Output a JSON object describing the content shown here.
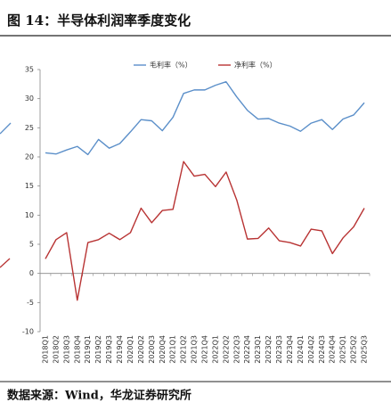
{
  "chart_data": {
    "type": "line",
    "title": "图 14：半导体利润率季度变化",
    "source": "数据来源：Wind，华龙证券研究所",
    "categories": [
      "2018Q1",
      "2018Q2",
      "2018Q3",
      "2018Q4",
      "2019Q1",
      "2019Q2",
      "2019Q3",
      "2019Q4",
      "2020Q1",
      "2020Q2",
      "2020Q3",
      "2020Q4",
      "2021Q1",
      "2021Q2",
      "2021Q3",
      "2021Q4",
      "2022Q1",
      "2022Q2",
      "2022Q3",
      "2022Q4",
      "2023Q1",
      "2023Q2",
      "2023Q3",
      "2023Q4",
      "2024Q1",
      "2024Q2",
      "2024Q3",
      "2024Q4",
      "2025Q1",
      "2025Q2",
      "2025Q3"
    ],
    "series": [
      {
        "name": "毛利率（%）",
        "color": "#5b8fc9",
        "values": [
          20.7,
          20.5,
          21.2,
          21.8,
          20.4,
          23.0,
          21.5,
          22.3,
          24.3,
          26.4,
          26.2,
          24.5,
          26.8,
          30.9,
          31.5,
          31.5,
          32.3,
          32.9,
          30.3,
          28.0,
          26.5,
          26.6,
          25.8,
          25.3,
          24.4,
          25.8,
          26.4,
          24.7,
          26.5,
          27.2,
          29.3
        ]
      },
      {
        "name": "净利率（%）",
        "color": "#b83333",
        "values": [
          2.5,
          5.8,
          7.0,
          -4.6,
          5.3,
          5.8,
          6.9,
          5.8,
          7.0,
          11.2,
          8.7,
          10.8,
          11.0,
          19.2,
          16.7,
          17.0,
          14.9,
          17.4,
          12.6,
          5.9,
          6.0,
          7.8,
          5.6,
          5.3,
          4.7,
          7.6,
          7.3,
          3.4,
          6.1,
          8.0,
          11.2
        ]
      }
    ],
    "ylim": [
      -10,
      35
    ],
    "yticks": [
      -10,
      -5,
      0,
      5,
      10,
      15,
      20,
      25,
      30,
      35
    ],
    "grid": false
  }
}
